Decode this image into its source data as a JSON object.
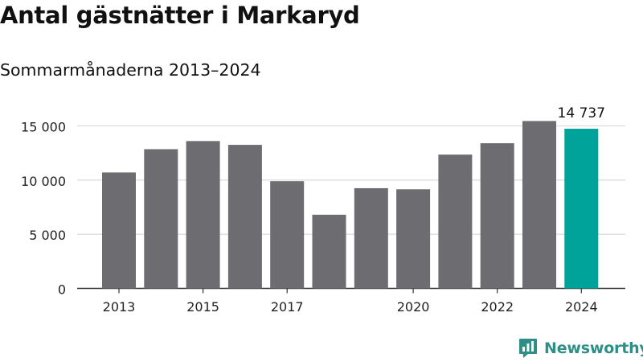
{
  "title": "Antal gästnätter i Markaryd",
  "subtitle": "Sommarmånaderna 2013–2024",
  "brand": {
    "name": "Newsworthy",
    "icon": "newsworthy-logo-icon",
    "color": "#2f8f87"
  },
  "chart_data": {
    "type": "bar",
    "categories": [
      "2013",
      "2014",
      "2015",
      "2016",
      "2017",
      "2018",
      "2019",
      "2020",
      "2021",
      "2022",
      "2023",
      "2024"
    ],
    "values": [
      10700,
      12850,
      13600,
      13250,
      9900,
      6800,
      9250,
      9150,
      12350,
      13400,
      15450,
      14737
    ],
    "x_tick_labels": [
      "2013",
      "2015",
      "2017",
      "2020",
      "2022",
      "2024"
    ],
    "y_ticks": [
      0,
      5000,
      10000,
      15000
    ],
    "y_tick_labels": [
      "0",
      "5 000",
      "10 000",
      "15 000"
    ],
    "ylim": [
      0,
      17500
    ],
    "annotation": {
      "category": "2024",
      "text": "14 737"
    },
    "colors": {
      "bar": "#6d6c71",
      "highlight": "#00a39a",
      "grid": "#dddddd",
      "axis": "#333333"
    },
    "highlight_category": "2024",
    "grid": true,
    "xlabel": "",
    "ylabel": ""
  }
}
